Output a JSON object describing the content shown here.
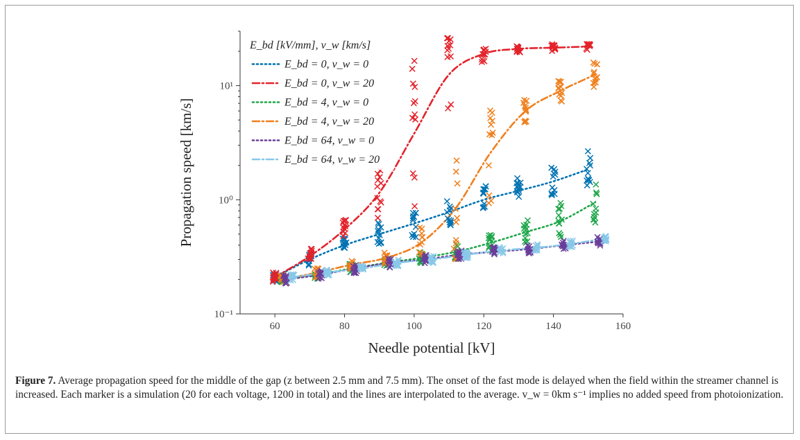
{
  "chart_data": {
    "type": "scatter",
    "xlabel": "Needle potential [kV]",
    "ylabel": "Propagation speed [km/s]",
    "xlim": [
      50,
      160
    ],
    "ylim": [
      0.1,
      30
    ],
    "yscale": "log",
    "x_ticks": [
      "60",
      "80",
      "100",
      "120",
      "140",
      "160"
    ],
    "y_ticks": [
      "10⁻¹",
      "10⁰",
      "10¹"
    ],
    "legend_title": "E_bd [kV/mm], v_w [km/s]",
    "legend_position": "top-left",
    "series": [
      {
        "name": "E_bd = 0, v_w = 0",
        "color": "#0072B2",
        "line": "dotted",
        "x": [
          60,
          70,
          80,
          90,
          100,
          110,
          120,
          130,
          140,
          150
        ],
        "y": [
          0.21,
          0.3,
          0.4,
          0.5,
          0.62,
          0.78,
          1.0,
          1.2,
          1.45,
          1.85
        ]
      },
      {
        "name": "E_bd = 0, v_w = 20",
        "color": "#E3232B",
        "line": "dashdot",
        "x": [
          60,
          70,
          80,
          90,
          100,
          110,
          120,
          130,
          140,
          150
        ],
        "y": [
          0.21,
          0.32,
          0.55,
          1.15,
          3.8,
          12.5,
          19,
          21,
          21.5,
          22
        ]
      },
      {
        "name": "E_bd = 4, v_w = 0",
        "color": "#1FA64A",
        "line": "dotted",
        "x": [
          62,
          72,
          82,
          92,
          102,
          112,
          122,
          132,
          142,
          152
        ],
        "y": [
          0.2,
          0.22,
          0.25,
          0.28,
          0.31,
          0.35,
          0.42,
          0.52,
          0.65,
          0.95
        ]
      },
      {
        "name": "E_bd = 4, v_w = 20",
        "color": "#F07F1D",
        "line": "dashdot",
        "x": [
          62,
          72,
          82,
          92,
          102,
          112,
          122,
          132,
          142,
          152
        ],
        "y": [
          0.2,
          0.23,
          0.27,
          0.31,
          0.42,
          0.85,
          2.6,
          6.0,
          9.0,
          12.5
        ]
      },
      {
        "name": "E_bd = 64, v_w = 0",
        "color": "#6A3D9A",
        "line": "dotted",
        "x": [
          63,
          73,
          83,
          93,
          103,
          113,
          123,
          133,
          143,
          153
        ],
        "y": [
          0.2,
          0.22,
          0.25,
          0.28,
          0.3,
          0.33,
          0.35,
          0.37,
          0.4,
          0.43
        ]
      },
      {
        "name": "E_bd = 64, v_w = 20",
        "color": "#88C8E8",
        "line": "dashdot",
        "x": [
          65,
          75,
          85,
          95,
          105,
          115,
          125,
          135,
          145,
          155
        ],
        "y": [
          0.21,
          0.23,
          0.25,
          0.28,
          0.3,
          0.33,
          0.36,
          0.38,
          0.41,
          0.46
        ]
      }
    ]
  },
  "caption": {
    "label": "Figure 7.",
    "text": "Average propagation speed for the middle of the gap (z between 2.5 mm and 7.5 mm). The onset of the fast mode is delayed when the field within the streamer channel is increased. Each marker is a simulation (20 for each voltage, 1200 in total) and the lines are interpolated to the average. v_w = 0km s⁻¹ implies no added speed from photoionization."
  }
}
